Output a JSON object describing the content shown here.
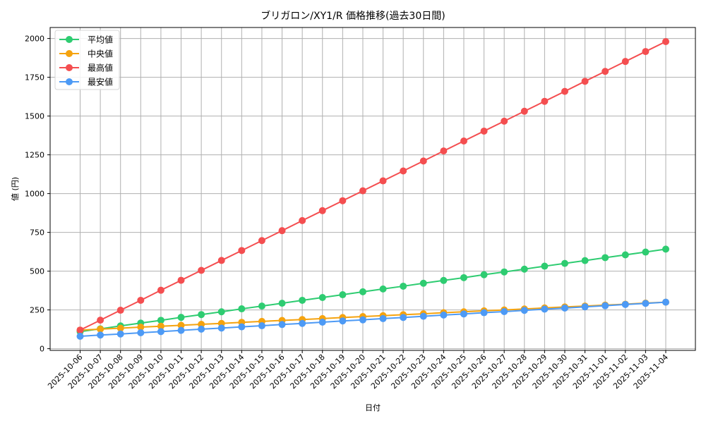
{
  "chart_data": {
    "type": "line",
    "title": "ブリガロン/XY1/R 価格推移(過去30日間)",
    "xlabel": "日付",
    "ylabel": "値 (円)",
    "ylim": [
      0,
      2060
    ],
    "yticks": [
      0,
      250,
      500,
      750,
      1000,
      1250,
      1500,
      1750,
      2000
    ],
    "grid": true,
    "legend_position": "upper left",
    "categories": [
      "2025-10-06",
      "2025-10-07",
      "2025-10-08",
      "2025-10-09",
      "2025-10-10",
      "2025-10-11",
      "2025-10-12",
      "2025-10-13",
      "2025-10-14",
      "2025-10-15",
      "2025-10-16",
      "2025-10-17",
      "2025-10-18",
      "2025-10-19",
      "2025-10-20",
      "2025-10-21",
      "2025-10-22",
      "2025-10-23",
      "2025-10-24",
      "2025-10-25",
      "2025-10-26",
      "2025-10-27",
      "2025-10-28",
      "2025-10-29",
      "2025-10-30",
      "2025-10-31",
      "2025-11-01",
      "2025-11-02",
      "2025-11-03",
      "2025-11-04"
    ],
    "series": [
      {
        "name": "平均値",
        "color": "#2ecc71",
        "values": [
          110,
          128,
          147,
          165,
          183,
          202,
          220,
          238,
          257,
          275,
          293,
          312,
          330,
          348,
          367,
          385,
          403,
          422,
          440,
          458,
          477,
          495,
          513,
          532,
          550,
          568,
          587,
          605,
          623,
          642
        ]
      },
      {
        "name": "中央値",
        "color": "#f5a30f",
        "values": [
          120,
          126,
          132,
          139,
          145,
          151,
          157,
          163,
          170,
          176,
          182,
          188,
          194,
          201,
          207,
          213,
          219,
          225,
          232,
          238,
          244,
          250,
          256,
          263,
          269,
          275,
          281,
          287,
          294,
          300
        ]
      },
      {
        "name": "最高値",
        "color": "#f44e50",
        "values": [
          120,
          184,
          248,
          312,
          377,
          441,
          505,
          569,
          633,
          697,
          761,
          826,
          890,
          954,
          1018,
          1082,
          1146,
          1210,
          1275,
          1339,
          1403,
          1467,
          1531,
          1595,
          1659,
          1724,
          1788,
          1852,
          1916,
          1980
        ]
      },
      {
        "name": "最安値",
        "color": "#4d9af5",
        "values": [
          80,
          88,
          95,
          103,
          110,
          118,
          126,
          133,
          141,
          148,
          156,
          163,
          171,
          179,
          186,
          194,
          201,
          209,
          217,
          224,
          232,
          239,
          247,
          255,
          262,
          270,
          277,
          285,
          292,
          300
        ]
      }
    ]
  }
}
